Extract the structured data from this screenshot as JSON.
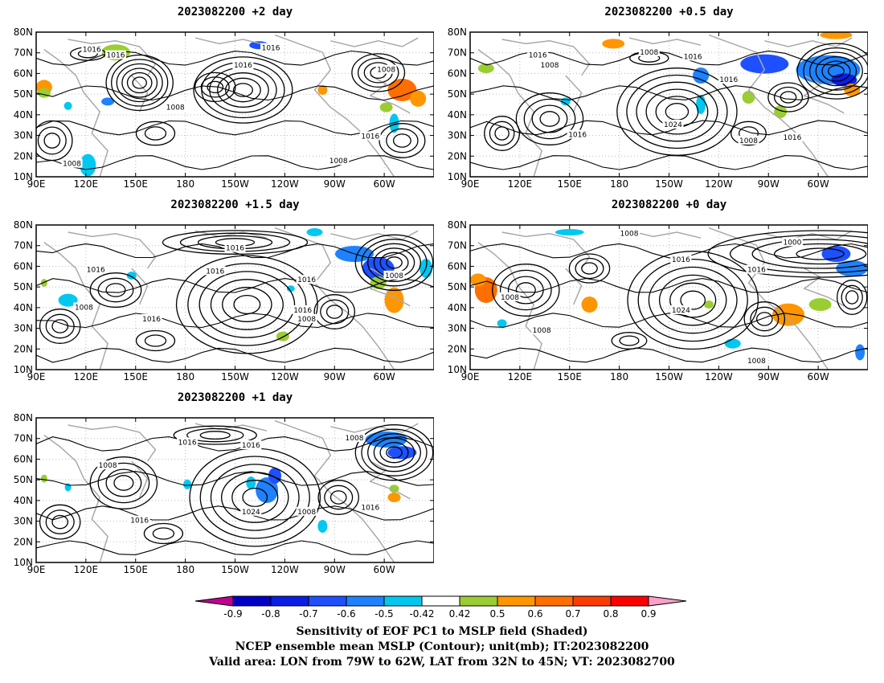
{
  "panels": [
    {
      "title": "2023082200  +2 day",
      "labels": [
        "1016",
        "1016",
        "1016",
        "1016",
        "1008",
        "1016",
        "1008",
        "1008",
        "1008"
      ]
    },
    {
      "title": "2023082200  +0.5 day",
      "labels": [
        "1016",
        "1008",
        "1008",
        "1016",
        "1016",
        "1024",
        "1016",
        "1008",
        "1016"
      ]
    },
    {
      "title": "2023082200  +1.5 day",
      "labels": [
        "1016",
        "1016",
        "1016",
        "1016",
        "1008",
        "1016",
        "1016",
        "1008",
        "1008"
      ]
    },
    {
      "title": "2023082200  +0 day",
      "labels": [
        "1008",
        "1016",
        "1000",
        "1016",
        "1008",
        "1008",
        "1024",
        "1008"
      ]
    },
    {
      "title": "2023082200  +1 day",
      "labels": [
        "1016",
        "1016",
        "1008",
        "1008",
        "1016",
        "1024",
        "1008",
        "1016"
      ]
    }
  ],
  "axes": {
    "lon_ticks": [
      "90E",
      "120E",
      "150E",
      "180",
      "150W",
      "120W",
      "90W",
      "60W"
    ],
    "lat_ticks": [
      "10N",
      "20N",
      "30N",
      "40N",
      "50N",
      "60N",
      "70N",
      "80N"
    ]
  },
  "colorbar": {
    "ticks": [
      "-0.9",
      "-0.8",
      "-0.7",
      "-0.6",
      "-0.5",
      "-0.42",
      "0.42",
      "0.5",
      "0.6",
      "0.7",
      "0.8",
      "0.9"
    ],
    "colors": [
      "#c0008f",
      "#0000c8",
      "#0a1ee6",
      "#1e50ff",
      "#1e82ff",
      "#00c8f0",
      "#ffffff",
      "#9acd32",
      "#ff9600",
      "#ff6e00",
      "#ff3c00",
      "#ff0000",
      "#ff9ec8"
    ]
  },
  "caption": {
    "line1": "Sensitivity of EOF PC1 to MSLP field (Shaded)",
    "line2": "NCEP ensemble mean MSLP (Contour); unit(mb); IT:2023082200",
    "line3": "Valid area: LON from 79W to 62W, LAT from 32N to 45N; VT: 2023082700"
  }
}
